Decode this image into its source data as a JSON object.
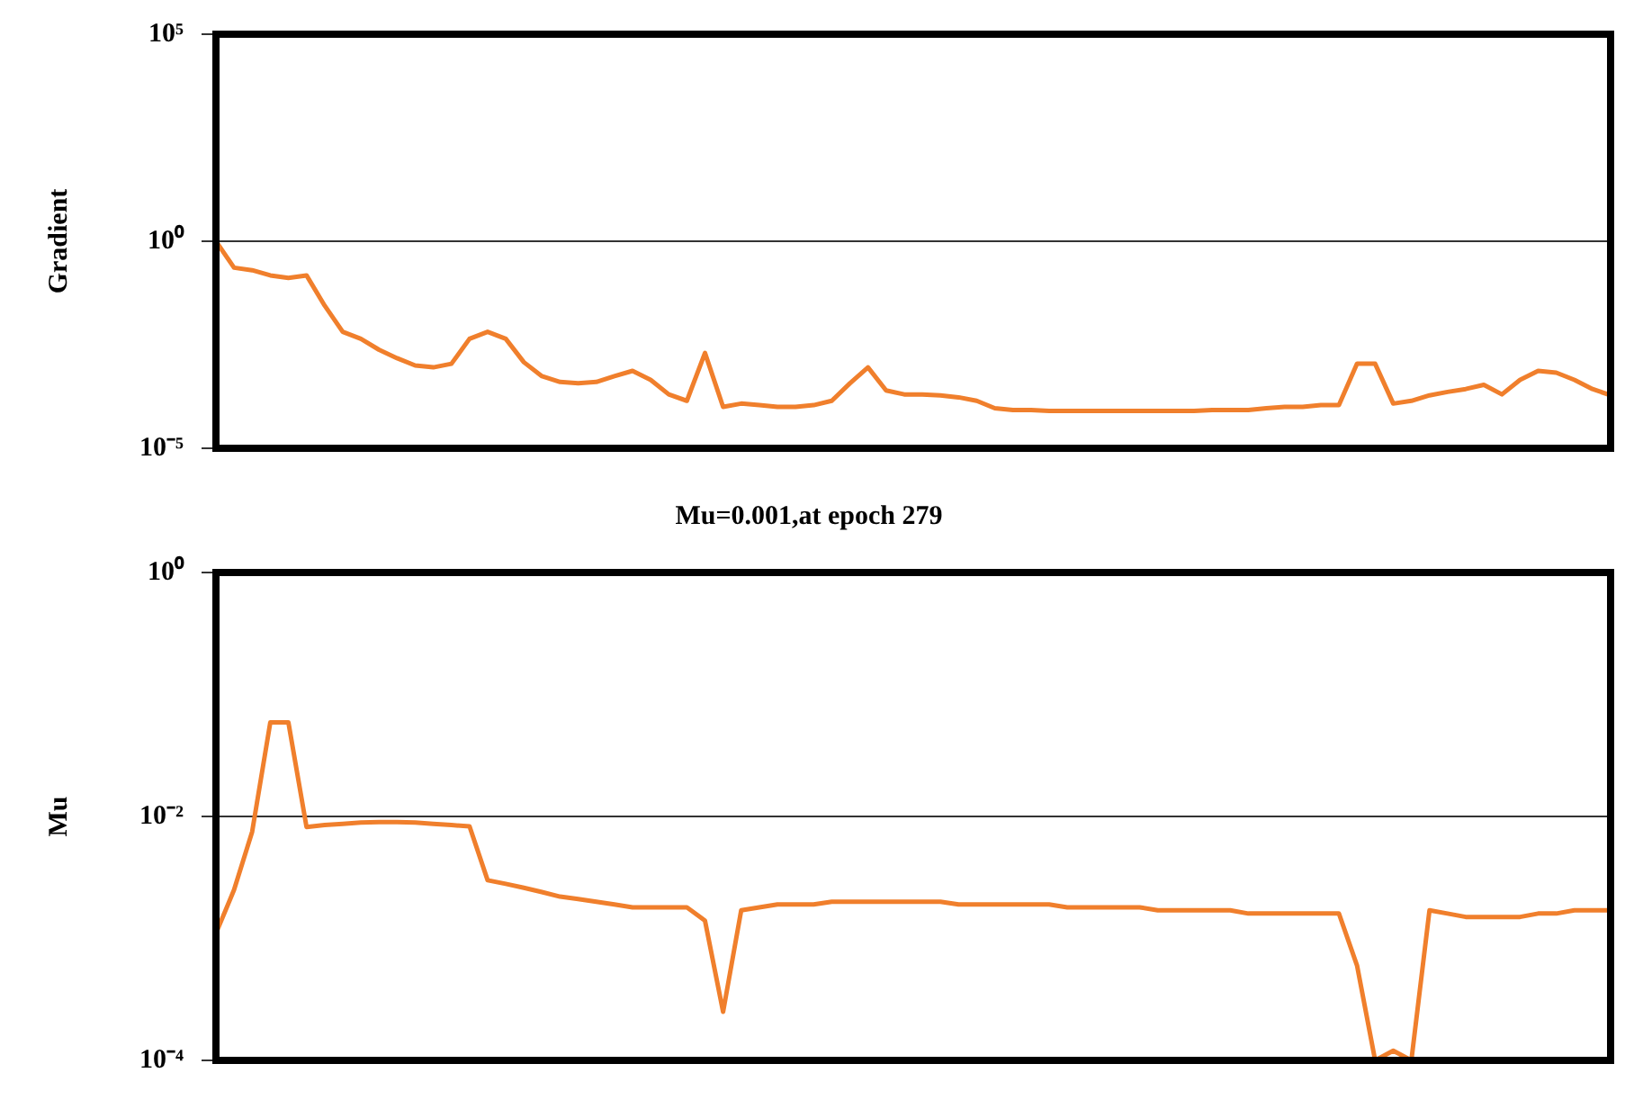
{
  "chart_data": [
    {
      "type": "line",
      "ylabel": "Gradient",
      "log": "y",
      "grid": "y",
      "tick_labels": "y",
      "marker": "none",
      "categories": [
        null,
        null,
        null,
        null,
        null,
        null,
        null,
        null,
        null,
        null,
        null,
        null,
        null,
        null,
        null,
        null,
        null,
        null,
        null,
        null,
        null,
        null,
        null,
        null,
        null,
        null,
        null,
        null,
        null,
        null,
        null,
        null,
        null,
        null,
        null,
        null,
        null,
        null,
        null,
        null,
        null,
        null,
        null,
        null,
        null,
        null,
        null,
        null,
        null,
        null,
        null,
        null,
        null,
        null,
        null,
        null,
        null,
        null,
        null,
        null,
        null,
        null,
        null,
        null,
        null,
        null,
        null,
        null,
        null,
        null,
        null,
        null,
        null,
        null,
        null,
        null,
        null,
        null
      ],
      "series": [
        {
          "color": "#f07f2c",
          "values": [
            1,
            0.23,
            0.2,
            0.15,
            0.13,
            0.15,
            0.028,
            0.0065,
            0.0044,
            0.0024,
            0.0015,
            0.001,
            0.0009,
            0.0011,
            0.0044,
            0.0065,
            0.0044,
            0.0012,
            0.00055,
            0.0004,
            0.00037,
            0.0004,
            0.00055,
            0.00074,
            0.00045,
            0.0002,
            0.00014,
            0.002,
            0.0001,
            0.00012,
            0.00011,
            0.0001,
            0.0001,
            0.00011,
            0.00014,
            0.00037,
            0.0009,
            0.00025,
            0.0002,
            0.0002,
            0.00019,
            0.00017,
            0.00014,
            9.3e-05,
            8.4e-05,
            8.4e-05,
            8e-05,
            8e-05,
            8e-05,
            8e-05,
            8e-05,
            8e-05,
            8e-05,
            8e-05,
            8e-05,
            8.4e-05,
            8.4e-05,
            8.4e-05,
            9.3e-05,
            0.0001,
            0.0001,
            0.00011,
            0.00011,
            0.0011,
            0.0011,
            0.00012,
            0.00014,
            0.00019,
            0.00023,
            0.00027,
            0.00034,
            0.0002,
            0.00045,
            0.00074,
            0.00067,
            0.00045,
            0.00027,
            0.00019
          ]
        }
      ],
      "ylim": [
        1e-05,
        100000
      ],
      "yticks": [
        {
          "value": 1e-05,
          "label": "10⁻⁵"
        },
        {
          "value": 1,
          "label": "10⁰"
        },
        {
          "value": 100000,
          "label": "10⁵"
        }
      ]
    },
    {
      "type": "line",
      "title": "Mu=0.001,at epoch 279",
      "ylabel": "Mu",
      "log": "y",
      "grid": "y",
      "tick_labels": "y",
      "marker": "none",
      "categories": [
        null,
        null,
        null,
        null,
        null,
        null,
        null,
        null,
        null,
        null,
        null,
        null,
        null,
        null,
        null,
        null,
        null,
        null,
        null,
        null,
        null,
        null,
        null,
        null,
        null,
        null,
        null,
        null,
        null,
        null,
        null,
        null,
        null,
        null,
        null,
        null,
        null,
        null,
        null,
        null,
        null,
        null,
        null,
        null,
        null,
        null,
        null,
        null,
        null,
        null,
        null,
        null,
        null,
        null,
        null,
        null,
        null,
        null,
        null,
        null,
        null,
        null,
        null,
        null,
        null,
        null,
        null,
        null,
        null,
        null,
        null,
        null,
        null,
        null,
        null,
        null,
        null,
        null
      ],
      "series": [
        {
          "color": "#f07f2c",
          "values": [
            0.0011,
            0.0025,
            0.0075,
            0.059,
            0.059,
            0.0082,
            0.0085,
            0.0087,
            0.0089,
            0.009,
            0.009,
            0.0089,
            0.0087,
            0.0085,
            0.0083,
            0.003,
            0.0028,
            0.0026,
            0.0024,
            0.0022,
            0.0021,
            0.002,
            0.0019,
            0.0018,
            0.0018,
            0.0018,
            0.0018,
            0.0014,
            0.00025,
            0.0017,
            0.0018,
            0.0019,
            0.0019,
            0.0019,
            0.002,
            0.002,
            0.002,
            0.002,
            0.002,
            0.002,
            0.002,
            0.0019,
            0.0019,
            0.0019,
            0.0019,
            0.0019,
            0.0019,
            0.0018,
            0.0018,
            0.0018,
            0.0018,
            0.0018,
            0.0017,
            0.0017,
            0.0017,
            0.0017,
            0.0017,
            0.0016,
            0.0016,
            0.0016,
            0.0016,
            0.0016,
            0.0016,
            0.0006,
            0.0001,
            0.00012,
            0.0001,
            0.0017,
            0.0016,
            0.0015,
            0.0015,
            0.0015,
            0.0015,
            0.0016,
            0.0016,
            0.0017,
            0.0017,
            0.0017
          ]
        }
      ],
      "ylim": [
        0.0001,
        1
      ],
      "yticks": [
        {
          "value": 0.0001,
          "label": "10⁻⁴"
        },
        {
          "value": 0.01,
          "label": "10⁻²"
        },
        {
          "value": 1,
          "label": "10⁰"
        }
      ]
    }
  ]
}
